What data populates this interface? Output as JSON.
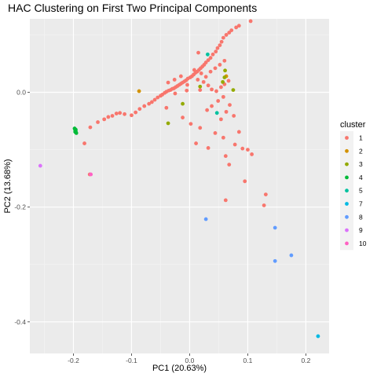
{
  "chart_data": {
    "type": "scatter",
    "title": "HAC Clustering on First Two Principal Components",
    "xlabel": "PC1 (20.63%)",
    "ylabel": "PC2 (13.68%)",
    "xlim": [
      -0.275,
      0.24
    ],
    "ylim": [
      -0.455,
      0.128
    ],
    "x_ticks": [
      -0.2,
      -0.1,
      0.0,
      0.1,
      0.2
    ],
    "x_tick_labels": [
      "-0.2",
      "-0.1",
      "0.0",
      "0.1",
      "0.2"
    ],
    "y_ticks": [
      0.0,
      -0.2,
      -0.4
    ],
    "y_tick_labels": [
      "0.0",
      "-0.2",
      "-0.4"
    ],
    "grid": true,
    "legend_placement": "right",
    "legend_title": "cluster",
    "series": [
      {
        "name": "1",
        "color": "#F8766D",
        "points": [
          [
            0.105,
            0.124
          ],
          [
            0.085,
            0.116
          ],
          [
            0.08,
            0.113
          ],
          [
            0.072,
            0.108
          ],
          [
            0.068,
            0.104
          ],
          [
            0.063,
            0.1
          ],
          [
            0.058,
            0.095
          ],
          [
            0.055,
            0.088
          ],
          [
            0.052,
            0.082
          ],
          [
            0.048,
            0.077
          ],
          [
            0.045,
            0.071
          ],
          [
            0.04,
            0.066
          ],
          [
            0.036,
            0.06
          ],
          [
            0.032,
            0.056
          ],
          [
            0.028,
            0.052
          ],
          [
            0.025,
            0.048
          ],
          [
            0.022,
            0.045
          ],
          [
            0.019,
            0.042
          ],
          [
            0.016,
            0.039
          ],
          [
            0.013,
            0.036
          ],
          [
            0.01,
            0.034
          ],
          [
            0.007,
            0.031
          ],
          [
            0.004,
            0.028
          ],
          [
            0.001,
            0.026
          ],
          [
            -0.003,
            0.024
          ],
          [
            -0.006,
            0.021
          ],
          [
            -0.009,
            0.019
          ],
          [
            -0.012,
            0.017
          ],
          [
            -0.015,
            0.015
          ],
          [
            -0.018,
            0.013
          ],
          [
            -0.021,
            0.011
          ],
          [
            -0.024,
            0.009
          ],
          [
            -0.027,
            0.007
          ],
          [
            -0.03,
            0.006
          ],
          [
            -0.033,
            0.004
          ],
          [
            -0.036,
            0.003
          ],
          [
            -0.04,
            0.001
          ],
          [
            -0.043,
            -0.001
          ],
          [
            -0.047,
            -0.004
          ],
          [
            -0.05,
            -0.006
          ],
          [
            -0.055,
            -0.009
          ],
          [
            -0.06,
            -0.013
          ],
          [
            -0.065,
            -0.017
          ],
          [
            -0.07,
            -0.02
          ],
          [
            -0.078,
            -0.024
          ],
          [
            -0.086,
            -0.029
          ],
          [
            -0.093,
            -0.035
          ],
          [
            -0.1,
            -0.04
          ],
          [
            -0.112,
            -0.038
          ],
          [
            -0.12,
            -0.036
          ],
          [
            -0.126,
            -0.037
          ],
          [
            -0.133,
            -0.041
          ],
          [
            -0.14,
            -0.043
          ],
          [
            -0.147,
            -0.047
          ],
          [
            -0.158,
            -0.052
          ],
          [
            -0.171,
            -0.061
          ],
          [
            -0.181,
            -0.089
          ],
          [
            -0.172,
            -0.143
          ],
          [
            0.008,
            0.039
          ],
          [
            0.02,
            0.033
          ],
          [
            0.028,
            0.027
          ],
          [
            0.036,
            0.036
          ],
          [
            0.044,
            0.042
          ],
          [
            0.052,
            0.048
          ],
          [
            0.06,
            0.055
          ],
          [
            0.014,
            0.022
          ],
          [
            0.024,
            0.018
          ],
          [
            0.032,
            0.012
          ],
          [
            -0.004,
            0.013
          ],
          [
            -0.015,
            0.028
          ],
          [
            -0.026,
            0.022
          ],
          [
            -0.037,
            0.017
          ],
          [
            0.038,
            0.005
          ],
          [
            0.046,
            0.002
          ],
          [
            0.054,
            0.009
          ],
          [
            0.06,
            0.014
          ],
          [
            0.067,
            0.02
          ],
          [
            0.058,
            -0.008
          ],
          [
            0.049,
            -0.015
          ],
          [
            0.038,
            -0.024
          ],
          [
            0.069,
            -0.022
          ],
          [
            0.03,
            -0.031
          ],
          [
            0.063,
            -0.034
          ],
          [
            0.076,
            -0.041
          ],
          [
            0.054,
            -0.047
          ],
          [
            -0.04,
            -0.027
          ],
          [
            -0.012,
            -0.044
          ],
          [
            0.002,
            -0.055
          ],
          [
            0.018,
            -0.062
          ],
          [
            0.044,
            -0.071
          ],
          [
            0.011,
            -0.089
          ],
          [
            0.085,
            -0.069
          ],
          [
            0.058,
            -0.079
          ],
          [
            0.032,
            -0.097
          ],
          [
            0.062,
            -0.111
          ],
          [
            0.068,
            -0.126
          ],
          [
            0.091,
            -0.098
          ],
          [
            0.1,
            -0.1
          ],
          [
            0.107,
            -0.108
          ],
          [
            0.095,
            -0.155
          ],
          [
            0.078,
            -0.091
          ],
          [
            0.062,
            -0.188
          ],
          [
            0.131,
            -0.178
          ],
          [
            0.128,
            -0.197
          ],
          [
            -0.005,
            0.003
          ],
          [
            0.018,
            0.004
          ],
          [
            -0.025,
            -0.002
          ],
          [
            0.015,
            0.069
          ]
        ]
      },
      {
        "name": "2",
        "color": "#D39200",
        "points": [
          [
            -0.087,
            0.002
          ],
          [
            0.063,
            0.028
          ]
        ]
      },
      {
        "name": "3",
        "color": "#93AA00",
        "points": [
          [
            -0.037,
            -0.054
          ],
          [
            0.018,
            0.01
          ],
          [
            0.061,
            0.038
          ],
          [
            0.06,
            0.026
          ],
          [
            0.057,
            0.018
          ],
          [
            0.075,
            0.004
          ],
          [
            -0.012,
            -0.02
          ]
        ]
      },
      {
        "name": "4",
        "color": "#00BA38",
        "points": [
          [
            -0.198,
            -0.063
          ],
          [
            -0.197,
            -0.066
          ],
          [
            -0.196,
            -0.068
          ],
          [
            -0.195,
            -0.071
          ],
          [
            -0.196,
            -0.065
          ],
          [
            -0.197,
            -0.069
          ]
        ]
      },
      {
        "name": "5",
        "color": "#00C19F",
        "points": [
          [
            0.031,
            0.066
          ],
          [
            0.047,
            -0.036
          ]
        ]
      },
      {
        "name": "7",
        "color": "#00B9E3",
        "points": [
          [
            0.221,
            -0.425
          ]
        ]
      },
      {
        "name": "8",
        "color": "#619CFF",
        "points": [
          [
            0.028,
            -0.221
          ],
          [
            0.147,
            -0.236
          ],
          [
            0.175,
            -0.284
          ],
          [
            0.147,
            -0.294
          ]
        ]
      },
      {
        "name": "9",
        "color": "#DB72FB",
        "points": [
          [
            -0.257,
            -0.128
          ]
        ]
      },
      {
        "name": "10",
        "color": "#FF61C3",
        "points": [
          [
            -0.17,
            -0.143
          ]
        ]
      }
    ]
  }
}
